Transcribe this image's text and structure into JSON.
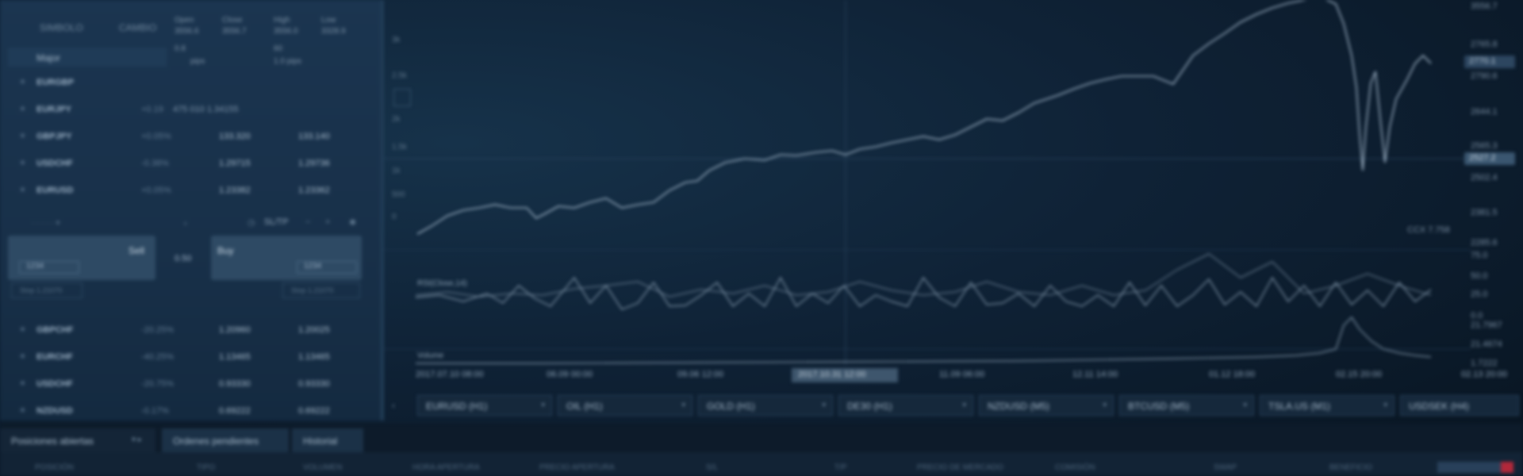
{
  "left_panel": {
    "tabs": [
      "SIMBOLO",
      "CAMBIO"
    ],
    "quote_header": {
      "row1": [
        "Open",
        "Close",
        "High",
        "Low"
      ],
      "row2": [
        "3556.6",
        "3556.7",
        "3556.0",
        "3328.9"
      ],
      "row3": [
        "0.8",
        "",
        "60",
        ""
      ],
      "row4": [
        "pips",
        "",
        "1.0 pips",
        ""
      ]
    },
    "group": "Major",
    "rows_top": [
      {
        "sym": "EURGBP",
        "chg": "",
        "bid": "",
        "ask": "",
        "info": ""
      },
      {
        "sym": "EURJPY",
        "chg": "+0.19",
        "bid": "",
        "ask": "",
        "info": "475 010  1.34155"
      },
      {
        "sym": "GBPJPY",
        "chg": "+0.05%",
        "bid": "133.320",
        "ask": "133.140",
        "info": ""
      },
      {
        "sym": "USDCHF",
        "chg": "-0.38%",
        "bid": "1.29715",
        "ask": "1.29736",
        "info": ""
      },
      {
        "sym": "EURUSD",
        "chg": "+0.05%",
        "bid": "1.23382",
        "ask": "1.23362",
        "info": ""
      }
    ],
    "order": {
      "toolbar": "SL/TP",
      "sell_label": "Sell",
      "buy_label": "Buy",
      "sell_value": "1234",
      "buy_value": "1234",
      "size": "0.50",
      "sell_sub": "Stop  1.21070",
      "buy_sub": "Stop  1.21070",
      "mid_sub": ""
    },
    "rows_bottom": [
      {
        "sym": "GBPCHF",
        "chg": "-20.25%",
        "bid": "1.20960",
        "ask": "1.20025"
      },
      {
        "sym": "EURCHF",
        "chg": "-40.25%",
        "bid": "1.13465",
        "ask": "1.13465"
      },
      {
        "sym": "USDCHF",
        "chg": "-20.75%",
        "bid": "0.93330",
        "ask": "0.93330"
      },
      {
        "sym": "NZDUSD",
        "chg": "-0.17%",
        "bid": "0.69222",
        "ask": "0.69222"
      }
    ]
  },
  "chart": {
    "y_labels": [
      "3556.7",
      "2765.8",
      "2790.6",
      "2644.1",
      "2565.3",
      "2502.4",
      "2381.5",
      "2285.6",
      "75.0",
      "50.0",
      "25.0",
      "0.0",
      "21.7967",
      "21.4674",
      "1.7222"
    ],
    "price_tag": "2770.1",
    "price_tag2": "2527.2",
    "stat_label": "CCX  7.758",
    "indicator1": "RSI(Close,14)",
    "indicator2": "Volume",
    "left_y": [
      "3k",
      "2.5k",
      "2k",
      "1.5k",
      "1k",
      "500",
      "0",
      "",
      "",
      ""
    ],
    "x_labels": [
      "2017.07.10 08:00",
      "06.09 00:00",
      "09.06 12:00",
      "",
      "11.09 06:00",
      "12.11 14:00",
      "01.12 18:00",
      "02.15 20:00",
      "02.13 20:00"
    ],
    "cursor_date": "2017.10.31 12:00",
    "tabs": [
      "EURUSD (H1)",
      "OIL (H1)",
      "GOLD (H1)",
      "DE30 (H1)",
      "NZDUSD (M5)",
      "BTCUSD (M5)",
      "TSLA.US (M1)",
      "USDSEK (H4)"
    ]
  },
  "bottom": {
    "tabs": [
      "Posiciones abiertas",
      "Ordenes pendientes",
      "Historial"
    ],
    "columns": [
      "POSICIÓN",
      "TIPO",
      "VOLUMEN",
      "HORA APERTURA",
      "PRECIO APERTURA",
      "S/L",
      "T/P",
      "PRECIO DE MERCADO",
      "COMISIÓN",
      "SWAP",
      "BENEFICIO"
    ]
  },
  "colors": {
    "line": "#a8bccd",
    "accent_red": "#b3283a"
  }
}
